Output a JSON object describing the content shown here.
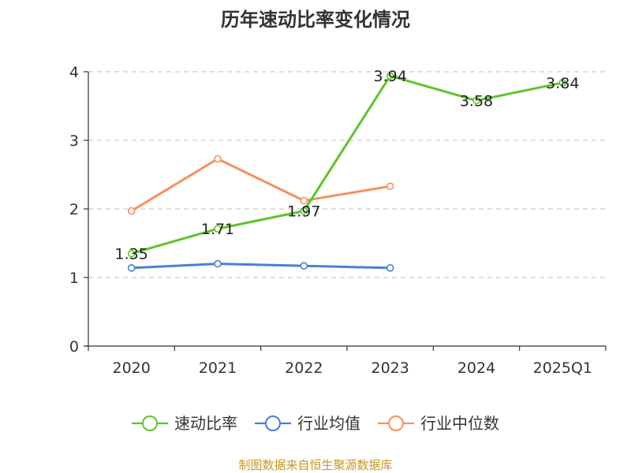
{
  "chart_data": {
    "type": "line",
    "title": "历年速动比率变化情况",
    "categories": [
      "2020",
      "2021",
      "2022",
      "2023",
      "2024",
      "2025Q1"
    ],
    "ylim": [
      0,
      4
    ],
    "yticks": [
      "0",
      "1",
      "2",
      "3",
      "4"
    ],
    "grid": true,
    "legend_position": "bottom",
    "series": [
      {
        "name": "速动比率",
        "values": [
          1.35,
          1.71,
          1.97,
          3.94,
          3.58,
          3.84
        ],
        "labels": [
          "1.35",
          "1.71",
          "1.97",
          "3.94",
          "3.58",
          "3.84"
        ],
        "color": "#5fc42b"
      },
      {
        "name": "行业均值",
        "values": [
          1.14,
          1.2,
          1.17,
          1.14,
          null,
          null
        ],
        "color": "#4a7fd6"
      },
      {
        "name": "行业中位数",
        "values": [
          1.97,
          2.73,
          2.12,
          2.33,
          null,
          null
        ],
        "color": "#f5915e"
      }
    ]
  },
  "source": {
    "text": "制图数据来自恒生聚源数据库",
    "color": "#c9951f"
  }
}
